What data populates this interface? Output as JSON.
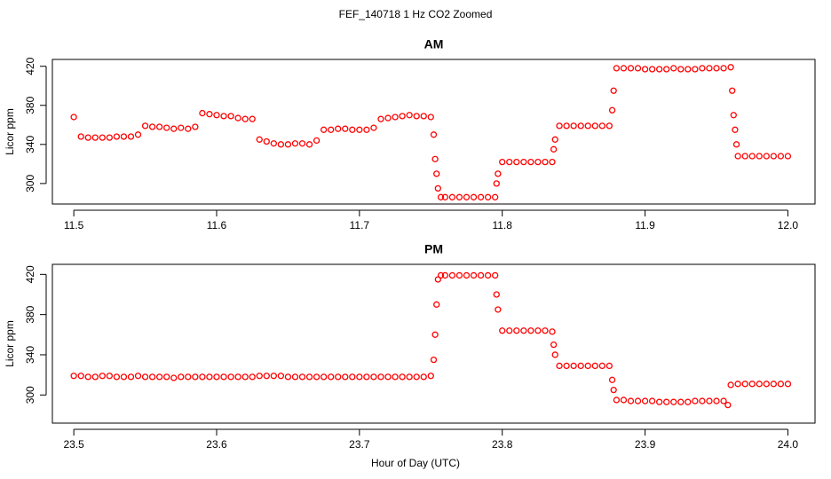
{
  "title": "FEF_140718  1 Hz CO2 Zoomed",
  "xlabel": "Hour of Day (UTC)",
  "chart_data": [
    {
      "type": "scatter",
      "title": "AM",
      "ylabel": "Licor ppm",
      "color": "#ff0000",
      "xlim": [
        11.485,
        12.019
      ],
      "ylim": [
        279,
        427
      ],
      "xticks": [
        11.5,
        11.6,
        11.7,
        11.8,
        11.9,
        {
          "value": 12,
          "label": "12.0"
        }
      ],
      "yticks": [
        300,
        340,
        380,
        420
      ],
      "x": [
        11.5,
        11.505,
        11.51,
        11.515,
        11.52,
        11.525,
        11.53,
        11.535,
        11.54,
        11.545,
        11.55,
        11.555,
        11.56,
        11.565,
        11.57,
        11.575,
        11.58,
        11.585,
        11.59,
        11.595,
        11.6,
        11.605,
        11.61,
        11.615,
        11.62,
        11.625,
        11.63,
        11.635,
        11.64,
        11.645,
        11.65,
        11.655,
        11.66,
        11.665,
        11.67,
        11.675,
        11.68,
        11.685,
        11.69,
        11.695,
        11.7,
        11.705,
        11.71,
        11.715,
        11.72,
        11.725,
        11.73,
        11.735,
        11.74,
        11.745,
        11.75,
        11.752,
        11.753,
        11.754,
        11.755,
        11.757,
        11.76,
        11.765,
        11.77,
        11.775,
        11.78,
        11.785,
        11.79,
        11.795,
        11.796,
        11.797,
        11.8,
        11.805,
        11.81,
        11.815,
        11.82,
        11.825,
        11.83,
        11.835,
        11.836,
        11.837,
        11.84,
        11.845,
        11.85,
        11.855,
        11.86,
        11.865,
        11.87,
        11.875,
        11.877,
        11.878,
        11.88,
        11.885,
        11.89,
        11.895,
        11.9,
        11.905,
        11.91,
        11.915,
        11.92,
        11.925,
        11.93,
        11.935,
        11.94,
        11.945,
        11.95,
        11.955,
        11.96,
        11.961,
        11.962,
        11.963,
        11.964,
        11.965,
        11.97,
        11.975,
        11.98,
        11.985,
        11.99,
        11.995,
        12.0
      ],
      "values": [
        368,
        348,
        347,
        347,
        347,
        347,
        348,
        348,
        348,
        350,
        359,
        358,
        358,
        357,
        356,
        357,
        356,
        358,
        372,
        371,
        370,
        369,
        369,
        367,
        366,
        366,
        345,
        343,
        341,
        340,
        340,
        341,
        341,
        340,
        344,
        355,
        355,
        356,
        356,
        355,
        355,
        355,
        357,
        366,
        367,
        368,
        369,
        370,
        369,
        369,
        368,
        350,
        325,
        310,
        295,
        286,
        286,
        286,
        286,
        286,
        286,
        286,
        286,
        286,
        300,
        310,
        322,
        322,
        322,
        322,
        322,
        322,
        322,
        322,
        335,
        345,
        359,
        359,
        359,
        359,
        359,
        359,
        359,
        359,
        375,
        395,
        418,
        418,
        418,
        418,
        417,
        417,
        417,
        417,
        418,
        417,
        417,
        417,
        418,
        418,
        418,
        418,
        419,
        395,
        370,
        355,
        340,
        328,
        328,
        328,
        328,
        328,
        328,
        328,
        328
      ]
    },
    {
      "type": "scatter",
      "title": "PM",
      "ylabel": "Licor ppm",
      "color": "#ff0000",
      "xlim": [
        23.485,
        24.019
      ],
      "ylim": [
        272,
        430
      ],
      "xticks": [
        23.5,
        23.6,
        23.7,
        23.8,
        23.9,
        {
          "value": 24,
          "label": "24.0"
        }
      ],
      "yticks": [
        300,
        340,
        380,
        420
      ],
      "x": [
        23.5,
        23.505,
        23.51,
        23.515,
        23.52,
        23.525,
        23.53,
        23.535,
        23.54,
        23.545,
        23.55,
        23.555,
        23.56,
        23.565,
        23.57,
        23.575,
        23.58,
        23.585,
        23.59,
        23.595,
        23.6,
        23.605,
        23.61,
        23.615,
        23.62,
        23.625,
        23.63,
        23.635,
        23.64,
        23.645,
        23.65,
        23.655,
        23.66,
        23.665,
        23.67,
        23.675,
        23.68,
        23.685,
        23.69,
        23.695,
        23.7,
        23.705,
        23.71,
        23.715,
        23.72,
        23.725,
        23.73,
        23.735,
        23.74,
        23.745,
        23.75,
        23.752,
        23.753,
        23.754,
        23.755,
        23.757,
        23.76,
        23.765,
        23.77,
        23.775,
        23.78,
        23.785,
        23.79,
        23.795,
        23.796,
        23.797,
        23.8,
        23.805,
        23.81,
        23.815,
        23.82,
        23.825,
        23.83,
        23.835,
        23.836,
        23.837,
        23.84,
        23.845,
        23.85,
        23.855,
        23.86,
        23.865,
        23.87,
        23.875,
        23.877,
        23.878,
        23.88,
        23.885,
        23.89,
        23.895,
        23.9,
        23.905,
        23.91,
        23.915,
        23.92,
        23.925,
        23.93,
        23.935,
        23.94,
        23.945,
        23.95,
        23.955,
        23.958,
        23.96,
        23.965,
        23.97,
        23.975,
        23.98,
        23.985,
        23.99,
        23.995,
        24.0
      ],
      "values": [
        319,
        319,
        318,
        318,
        319,
        319,
        318,
        318,
        318,
        319,
        318,
        318,
        318,
        318,
        317,
        318,
        318,
        318,
        318,
        318,
        318,
        318,
        318,
        318,
        318,
        318,
        319,
        319,
        319,
        319,
        318,
        318,
        318,
        318,
        318,
        318,
        318,
        318,
        318,
        318,
        318,
        318,
        318,
        318,
        318,
        318,
        318,
        318,
        318,
        318,
        319,
        335,
        360,
        390,
        415,
        419,
        419,
        419,
        419,
        419,
        419,
        419,
        419,
        419,
        400,
        385,
        364,
        364,
        364,
        364,
        364,
        364,
        364,
        363,
        350,
        340,
        329,
        329,
        329,
        329,
        329,
        329,
        329,
        329,
        315,
        305,
        295,
        295,
        294,
        294,
        294,
        294,
        293,
        293,
        293,
        293,
        293,
        294,
        294,
        294,
        294,
        294,
        290,
        310,
        311,
        311,
        311,
        311,
        311,
        311,
        311,
        311
      ]
    }
  ]
}
